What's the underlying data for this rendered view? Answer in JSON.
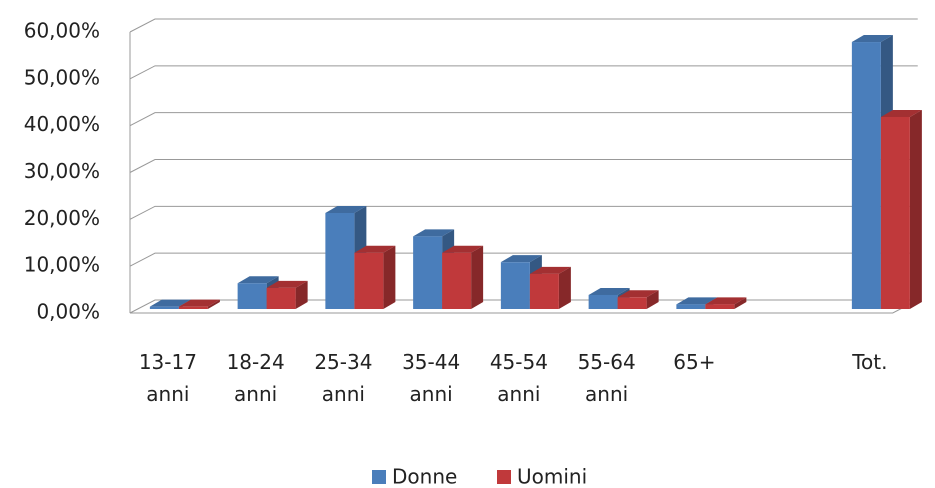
{
  "chart_data": {
    "type": "bar",
    "categories": [
      "13-17 anni",
      "18-24 anni",
      "25-34 anni",
      "35-44 anni",
      "45-54 anni",
      "55-64 anni",
      "65+",
      null,
      "Tot."
    ],
    "series": [
      {
        "name": "Donne",
        "color": "#4a7ebb",
        "values": [
          0.5,
          5.5,
          20.5,
          15.5,
          10,
          3,
          1,
          null,
          57
        ]
      },
      {
        "name": "Uomini",
        "color": "#c0393b",
        "values": [
          0.5,
          4.5,
          12,
          12,
          7.5,
          2.5,
          1,
          null,
          41
        ]
      }
    ],
    "ylim": [
      0,
      60
    ],
    "yticks": [
      {
        "value": 0,
        "label": "0,00%"
      },
      {
        "value": 10,
        "label": "10,00%"
      },
      {
        "value": 20,
        "label": "20,00%"
      },
      {
        "value": 30,
        "label": "30,00%"
      },
      {
        "value": 40,
        "label": "40,00%"
      },
      {
        "value": 50,
        "label": "50,00%"
      },
      {
        "value": 60,
        "label": "60,00%"
      }
    ],
    "grid": true,
    "legend": "bottom"
  }
}
